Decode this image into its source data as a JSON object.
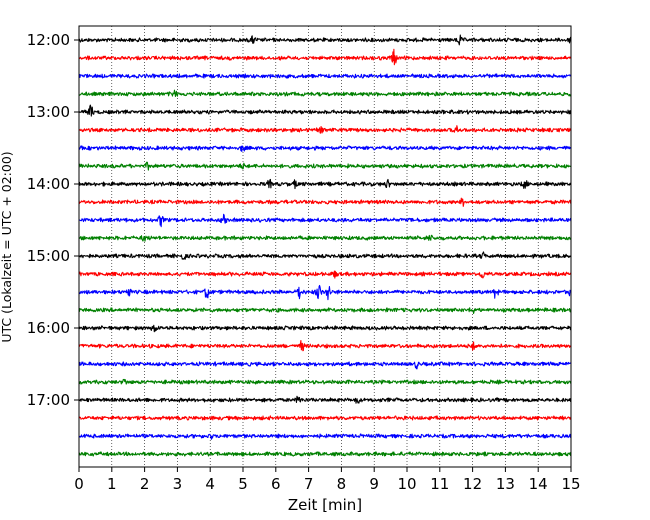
{
  "chart_data": {
    "type": "line",
    "title": "",
    "xlabel": "Zeit  [min]",
    "ylabel": "UTC (Lokalzeit = UTC + 02:00)",
    "xlim": [
      0,
      15
    ],
    "x_ticks": [
      0,
      1,
      2,
      3,
      4,
      5,
      6,
      7,
      8,
      9,
      10,
      11,
      12,
      13,
      14,
      15
    ],
    "y_tick_labels": [
      "12:00",
      "13:00",
      "14:00",
      "15:00",
      "16:00",
      "17:00"
    ],
    "grid": "vertical dotted",
    "trace_colors": [
      "#000000",
      "#ff0000",
      "#0000ff",
      "#008000"
    ],
    "traces": [
      {
        "start": "12:00",
        "events": [
          [
            5.3,
            0.6
          ],
          [
            11.6,
            0.8
          ],
          [
            15.0,
            0.6
          ]
        ]
      },
      {
        "start": "12:15",
        "events": [
          [
            9.6,
            1.4
          ]
        ]
      },
      {
        "start": "12:30",
        "events": []
      },
      {
        "start": "12:45",
        "events": [
          [
            2.9,
            0.5
          ]
        ]
      },
      {
        "start": "13:00",
        "events": [
          [
            0.35,
            1.1
          ]
        ]
      },
      {
        "start": "13:15",
        "events": [
          [
            7.4,
            0.5
          ],
          [
            11.5,
            0.6
          ]
        ]
      },
      {
        "start": "13:30",
        "events": [
          [
            5.0,
            0.5
          ]
        ]
      },
      {
        "start": "13:45",
        "events": [
          [
            2.1,
            0.4
          ],
          [
            5.0,
            0.4
          ]
        ]
      },
      {
        "start": "14:00",
        "events": [
          [
            5.8,
            0.6
          ],
          [
            6.6,
            0.5
          ],
          [
            9.4,
            0.6
          ],
          [
            13.6,
            0.7
          ]
        ]
      },
      {
        "start": "14:15",
        "events": [
          [
            11.7,
            0.5
          ]
        ]
      },
      {
        "start": "14:30",
        "events": [
          [
            2.5,
            0.9
          ],
          [
            4.4,
            0.8
          ]
        ]
      },
      {
        "start": "14:45",
        "events": [
          [
            2.0,
            0.5
          ],
          [
            10.7,
            0.5
          ]
        ]
      },
      {
        "start": "15:00",
        "events": [
          [
            3.2,
            0.5
          ],
          [
            12.3,
            0.5
          ]
        ]
      },
      {
        "start": "15:15",
        "events": [
          [
            7.8,
            0.5
          ],
          [
            12.3,
            0.6
          ]
        ]
      },
      {
        "start": "15:30",
        "events": [
          [
            1.5,
            0.7
          ],
          [
            3.9,
            1.0
          ],
          [
            6.7,
            1.1
          ],
          [
            7.3,
            1.4
          ],
          [
            7.6,
            1.3
          ],
          [
            12.7,
            0.9
          ],
          [
            15.0,
            0.8
          ]
        ]
      },
      {
        "start": "15:45",
        "events": [
          [
            12.0,
            0.5
          ]
        ]
      },
      {
        "start": "16:00",
        "events": [
          [
            2.3,
            0.6
          ]
        ]
      },
      {
        "start": "16:15",
        "events": [
          [
            6.8,
            0.8
          ],
          [
            12.0,
            0.6
          ]
        ]
      },
      {
        "start": "16:30",
        "events": [
          [
            10.3,
            0.5
          ]
        ]
      },
      {
        "start": "16:45",
        "events": [
          [
            1.4,
            0.4
          ]
        ]
      },
      {
        "start": "17:00",
        "events": [
          [
            6.7,
            0.6
          ],
          [
            8.5,
            0.5
          ]
        ]
      },
      {
        "start": "17:15",
        "events": []
      },
      {
        "start": "17:30",
        "events": [
          [
            4.0,
            0.4
          ]
        ]
      },
      {
        "start": "17:45",
        "events": []
      }
    ]
  }
}
